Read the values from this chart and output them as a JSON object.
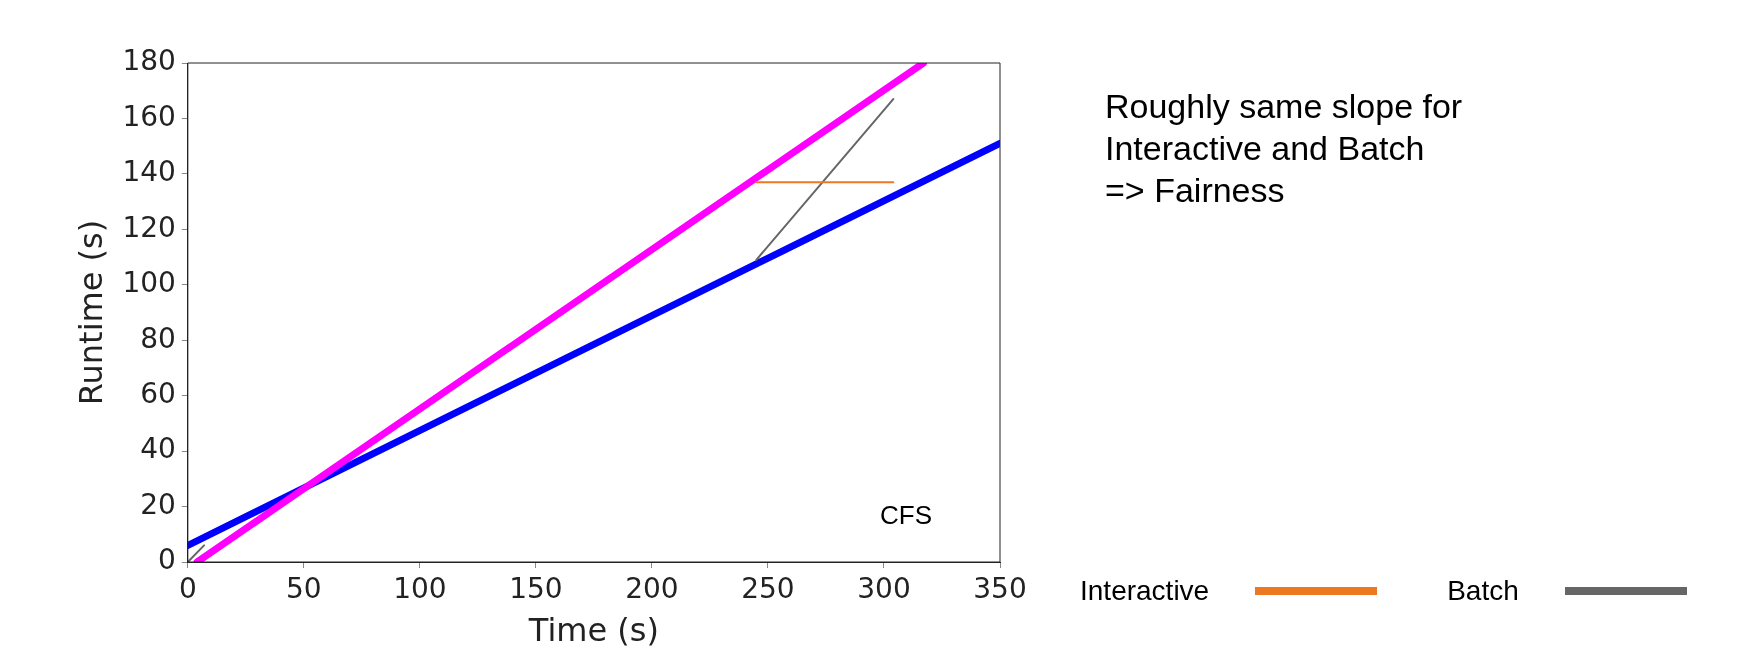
{
  "chart_data": {
    "type": "line",
    "xlabel": "Time (s)",
    "ylabel": "Runtime (s)",
    "xlim": [
      0,
      350
    ],
    "xticks": [
      0,
      50,
      100,
      150,
      200,
      250,
      300,
      350
    ],
    "ylim": [
      0,
      180
    ],
    "yticks": [
      0,
      20,
      40,
      60,
      80,
      100,
      120,
      140,
      160,
      180
    ],
    "grid": false,
    "legend": "bottom right",
    "marker": "none",
    "line_style": "solid",
    "series": [
      {
        "name": "Interactive",
        "color": "#ee7722",
        "x": [
          245,
          304
        ],
        "values": [
          137,
          137
        ]
      },
      {
        "name": "Batch",
        "color": "#666666",
        "x": [
          0,
          7,
          100,
          245,
          304
        ],
        "values": [
          0,
          6,
          null,
          109,
          167
        ]
      },
      {
        "color": "#ff00ff",
        "x": [
          4,
          317
        ],
        "values": [
          0,
          180
        ]
      },
      {
        "color": "#0000ff",
        "x": [
          0,
          350
        ],
        "values": [
          6,
          151
        ]
      }
    ],
    "annotations": [
      "CFS",
      "Roughly same slope for",
      "Interactive and Batch",
      "=> Fairness"
    ]
  }
}
